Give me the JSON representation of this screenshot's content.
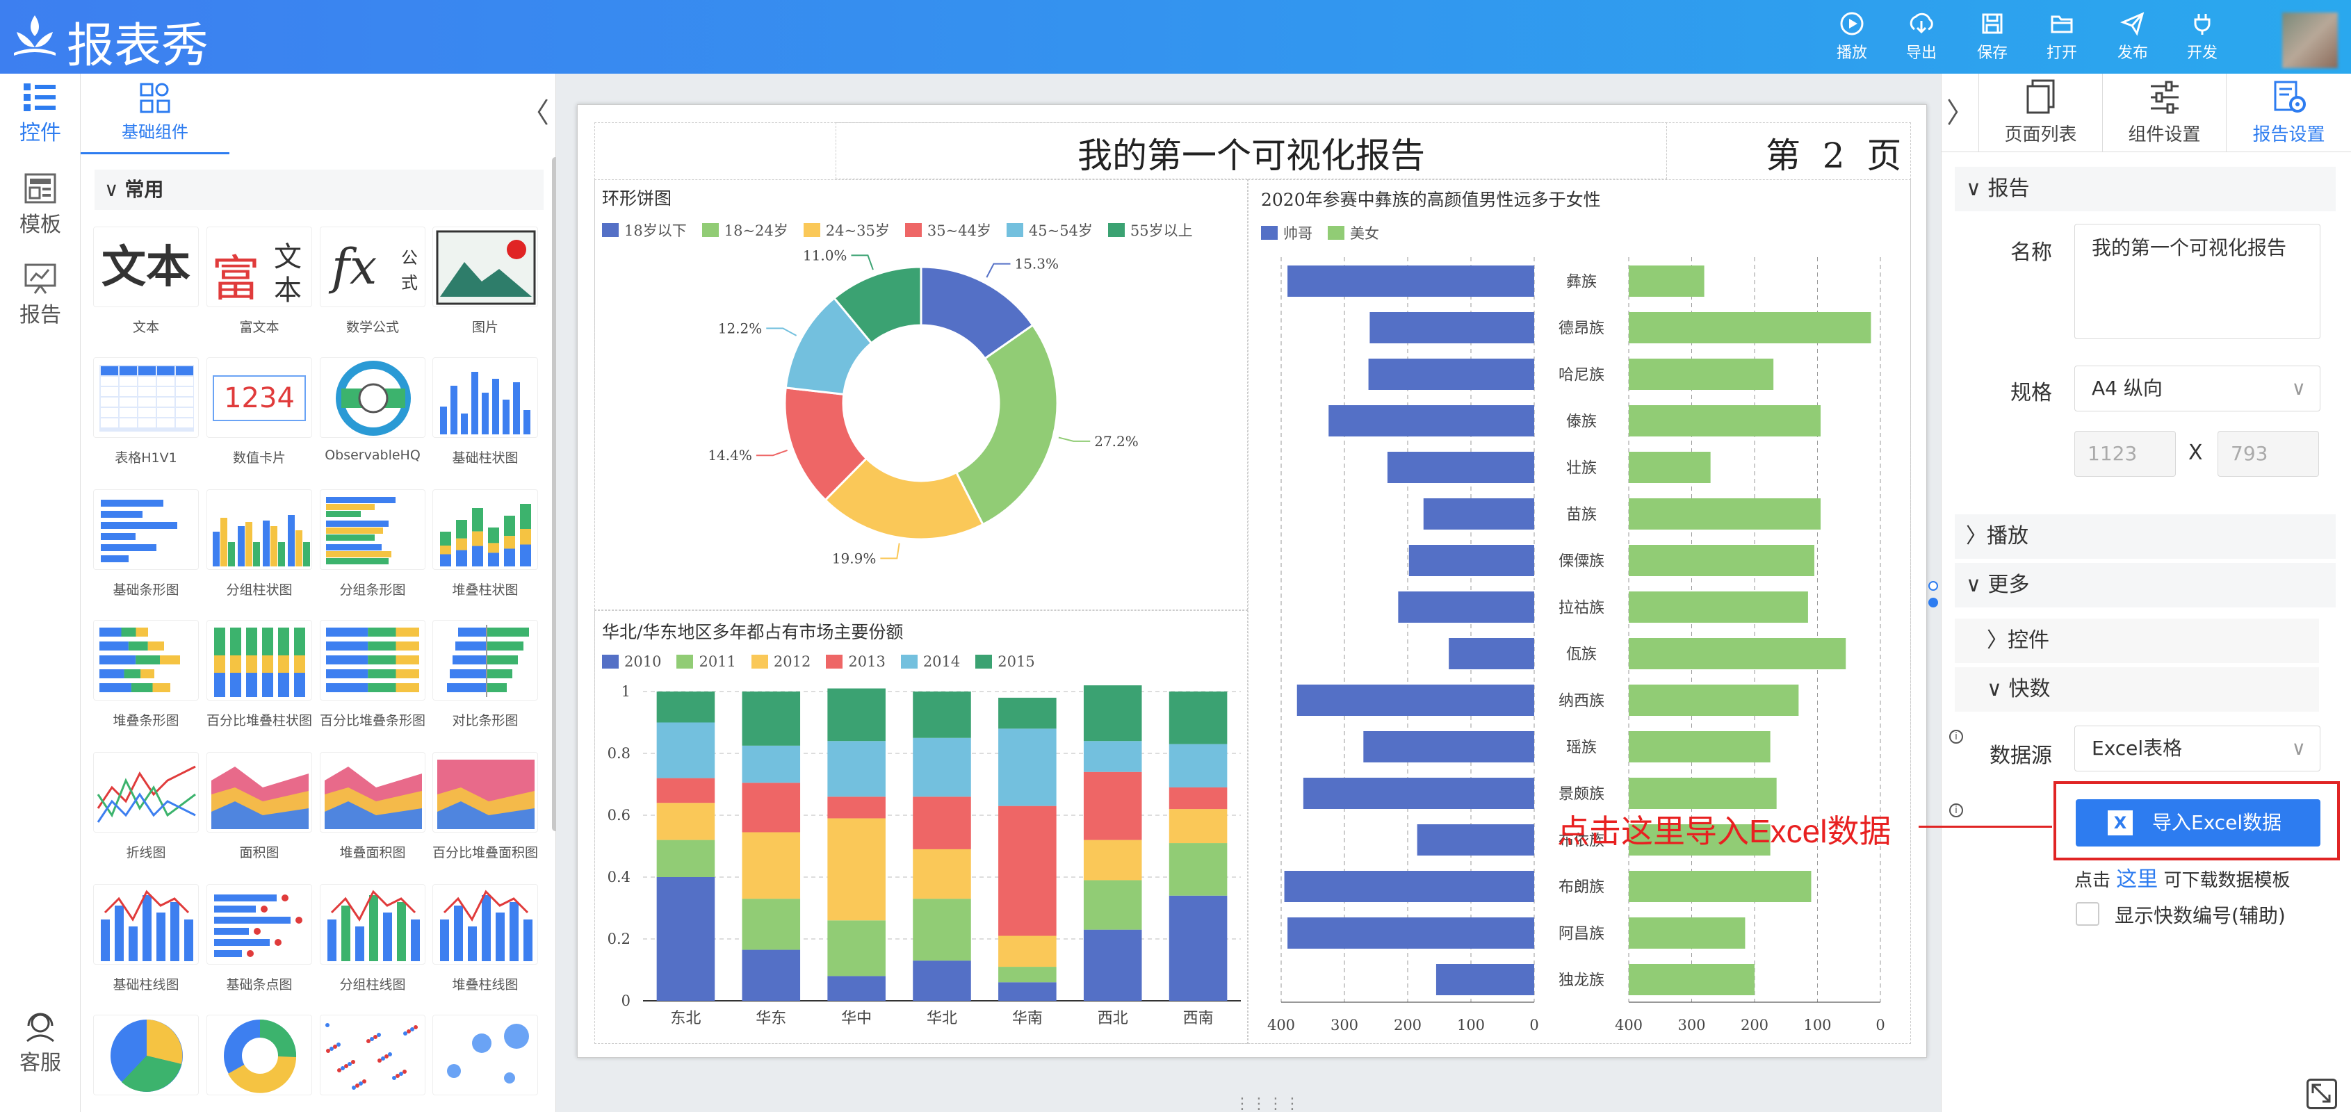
{
  "app": {
    "name": "报表秀"
  },
  "toolbar": [
    {
      "label": "播放",
      "icon": "play-icon"
    },
    {
      "label": "导出",
      "icon": "download-icon"
    },
    {
      "label": "保存",
      "icon": "save-icon"
    },
    {
      "label": "打开",
      "icon": "folder-icon"
    },
    {
      "label": "发布",
      "icon": "send-icon"
    },
    {
      "label": "开发",
      "icon": "plug-icon"
    }
  ],
  "leftnav": {
    "items": [
      "控件",
      "模板",
      "报告"
    ],
    "service": "客服"
  },
  "palette": {
    "tab": "基础组件",
    "collapse": "〈",
    "section": "常用",
    "widgets": [
      "文本",
      "富文本",
      "数学公式",
      "图片",
      "表格H1V1",
      "数值卡片",
      "ObservableHQ",
      "基础柱状图",
      "基础条形图",
      "分组柱状图",
      "分组条形图",
      "堆叠柱状图",
      "堆叠条形图",
      "百分比堆叠柱状图",
      "百分比堆叠条形图",
      "对比条形图",
      "折线图",
      "面积图",
      "堆叠面积图",
      "百分比堆叠面积图",
      "基础柱线图",
      "基础条点图",
      "分组柱线图",
      "堆叠柱线图"
    ],
    "thumb_text": {
      "text": "文本",
      "rich1": "富",
      "rich2": "文",
      "rich3": "本",
      "math": "fx",
      "math2": "公",
      "math3": "式",
      "card": "1234"
    }
  },
  "report": {
    "title": "我的第一个可视化报告",
    "page_label": "第  2  页"
  },
  "donut": {
    "title": "环形饼图",
    "colors": [
      "#5470c6",
      "#91cc75",
      "#fac858",
      "#ee6666",
      "#73c0de",
      "#3ba272"
    ]
  },
  "stack": {
    "title": "华北/华东地区多年都占有市场主要份额"
  },
  "mirror": {
    "title": "2020年参赛中彝族的高颜值男性远多于女性"
  },
  "chart_data": [
    {
      "type": "pie",
      "title": "环形饼图",
      "categories": [
        "18岁以下",
        "18~24岁",
        "24~35岁",
        "35~44岁",
        "45~54岁",
        "55岁以上"
      ],
      "values": [
        15.3,
        27.2,
        19.9,
        14.4,
        12.2,
        11.0
      ],
      "labels": [
        "15.3%",
        "27.2%",
        "19.9%",
        "14.4%",
        "12.2%",
        "11.0%"
      ]
    },
    {
      "type": "bar",
      "title": "华北/华东地区多年都占有市场主要份额",
      "categories": [
        "东北",
        "华东",
        "华中",
        "华北",
        "华南",
        "西北",
        "西南"
      ],
      "ylim": [
        0,
        1
      ],
      "yticks": [
        "0",
        "0.2",
        "0.4",
        "0.6",
        "0.8",
        "1"
      ],
      "series": [
        {
          "name": "2010",
          "values": [
            0.4,
            0.165,
            0.08,
            0.13,
            0.06,
            0.23,
            0.34
          ]
        },
        {
          "name": "2011",
          "values": [
            0.12,
            0.165,
            0.18,
            0.2,
            0.05,
            0.16,
            0.17
          ]
        },
        {
          "name": "2012",
          "values": [
            0.12,
            0.215,
            0.33,
            0.16,
            0.1,
            0.13,
            0.11
          ]
        },
        {
          "name": "2013",
          "values": [
            0.08,
            0.16,
            0.07,
            0.17,
            0.42,
            0.22,
            0.07
          ]
        },
        {
          "name": "2014",
          "values": [
            0.18,
            0.12,
            0.18,
            0.19,
            0.25,
            0.1,
            0.14
          ]
        },
        {
          "name": "2015",
          "values": [
            0.1,
            0.175,
            0.17,
            0.15,
            0.1,
            0.18,
            0.17
          ]
        }
      ]
    },
    {
      "type": "bar",
      "title": "2020年参赛中彝族的高颜值男性远多于女性",
      "orientation": "horizontal",
      "categories": [
        "彝族",
        "德昂族",
        "哈尼族",
        "傣族",
        "壮族",
        "苗族",
        "傈僳族",
        "拉祜族",
        "佤族",
        "纳西族",
        "瑶族",
        "景颇族",
        "布依族",
        "布朗族",
        "阿昌族",
        "独龙族"
      ],
      "xlim": [
        0,
        400
      ],
      "xticks": [
        "400",
        "300",
        "200",
        "100",
        "0"
      ],
      "series": [
        {
          "name": "帅哥",
          "values": [
            390,
            260,
            262,
            325,
            232,
            175,
            198,
            215,
            135,
            375,
            270,
            365,
            185,
            395,
            390,
            155
          ]
        },
        {
          "name": "美女",
          "values": [
            120,
            385,
            230,
            305,
            130,
            305,
            295,
            285,
            345,
            270,
            225,
            235,
            225,
            290,
            185,
            200
          ]
        }
      ]
    }
  ],
  "right": {
    "tabs": [
      "页面列表",
      "组件设置",
      "报告设置"
    ],
    "expand": "〉",
    "report_section": "报告",
    "name_label": "名称",
    "name_value": "我的第一个可视化报告",
    "spec_label": "规格",
    "spec_value": "A4 纵向",
    "width": "1123",
    "x": "X",
    "height": "793",
    "play_section": "播放",
    "more_section": "更多",
    "widget_section": "控件",
    "quick_section": "快数",
    "source_label": "数据源",
    "source_value": "Excel表格",
    "import_button": "导入Excel数据",
    "hint_pre": "点击",
    "hint_link": "这里",
    "hint_post": "可下载数据模板",
    "checkbox_label": "显示快数编号(辅助)"
  },
  "annotation": {
    "text": "点击这里导入Excel数据",
    "color": "#e82020"
  }
}
